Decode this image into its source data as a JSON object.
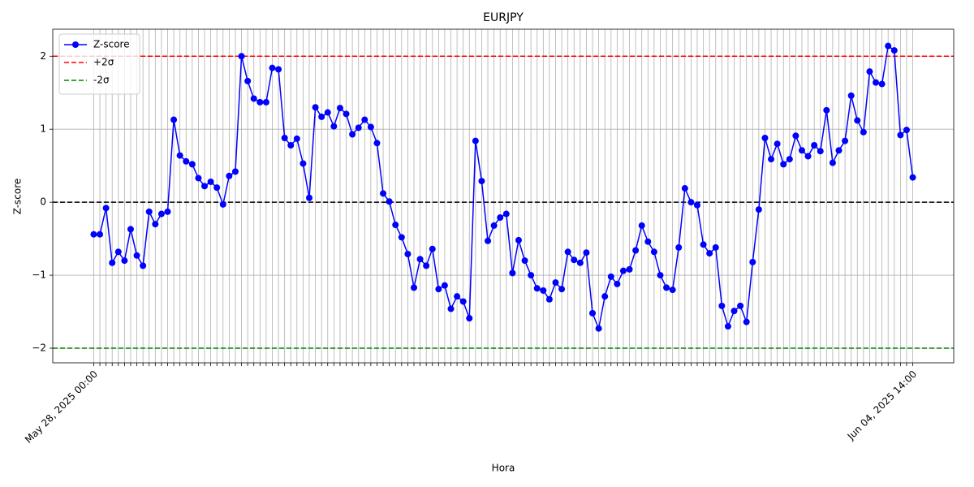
{
  "chart_data": {
    "type": "line",
    "title": "EURJPY",
    "x_label": "Hora",
    "y_label": "Z-score",
    "categories": [
      "May 28, 2025 00:00",
      null,
      null,
      null,
      null,
      null,
      null,
      null,
      null,
      null,
      null,
      null,
      null,
      null,
      null,
      null,
      null,
      null,
      null,
      null,
      null,
      null,
      null,
      null,
      null,
      null,
      null,
      null,
      null,
      null,
      null,
      null,
      null,
      null,
      null,
      null,
      null,
      null,
      null,
      null,
      null,
      null,
      null,
      null,
      null,
      null,
      null,
      null,
      null,
      null,
      null,
      null,
      null,
      null,
      null,
      null,
      null,
      null,
      null,
      null,
      null,
      null,
      null,
      null,
      null,
      null,
      null,
      null,
      null,
      null,
      null,
      null,
      null,
      null,
      null,
      null,
      null,
      null,
      null,
      null,
      null,
      null,
      null,
      null,
      null,
      null,
      null,
      null,
      null,
      null,
      null,
      null,
      null,
      null,
      null,
      null,
      null,
      null,
      null,
      null,
      null,
      null,
      null,
      null,
      null,
      null,
      null,
      null,
      null,
      null,
      null,
      null,
      null,
      null,
      null,
      null,
      null,
      null,
      null,
      null,
      null,
      null,
      null,
      null,
      null,
      null,
      null,
      null,
      null,
      null,
      null,
      null,
      null,
      "Jun 04, 2025 14:00"
    ],
    "series": [
      {
        "name": "Z-score",
        "color": "#0000ff",
        "marker": "o",
        "values": [
          -0.44,
          -0.44,
          -0.08,
          -0.83,
          -0.68,
          -0.8,
          -0.37,
          -0.73,
          -0.87,
          -0.13,
          -0.3,
          -0.16,
          -0.13,
          1.13,
          0.64,
          0.56,
          0.52,
          0.33,
          0.22,
          0.28,
          0.2,
          -0.03,
          0.36,
          0.42,
          2.0,
          1.66,
          1.42,
          1.37,
          1.37,
          1.84,
          1.82,
          0.88,
          0.78,
          0.87,
          0.53,
          0.06,
          1.3,
          1.17,
          1.23,
          1.04,
          1.29,
          1.21,
          0.93,
          1.02,
          1.13,
          1.03,
          0.81,
          0.12,
          0.01,
          -0.31,
          -0.48,
          -0.71,
          -1.17,
          -0.78,
          -0.87,
          -0.64,
          -1.19,
          -1.14,
          -1.46,
          -1.29,
          -1.36,
          -1.59,
          0.84,
          0.29,
          -0.53,
          -0.32,
          -0.21,
          -0.16,
          -0.97,
          -0.52,
          -0.8,
          -1.0,
          -1.18,
          -1.21,
          -1.33,
          -1.1,
          -1.19,
          -0.68,
          -0.79,
          -0.83,
          -0.69,
          -1.52,
          -1.73,
          -1.29,
          -1.02,
          -1.12,
          -0.94,
          -0.92,
          -0.66,
          -0.32,
          -0.54,
          -0.68,
          -1.0,
          -1.17,
          -1.2,
          -0.62,
          0.19,
          0.0,
          -0.04,
          -0.58,
          -0.7,
          -0.62,
          -1.42,
          -1.7,
          -1.49,
          -1.42,
          -1.64,
          -0.82,
          -0.1,
          0.88,
          0.59,
          0.8,
          0.52,
          0.59,
          0.91,
          0.71,
          0.63,
          0.78,
          0.7,
          1.26,
          0.54,
          0.71,
          0.84,
          1.46,
          1.12,
          0.96,
          1.79,
          1.64,
          1.62,
          2.14,
          2.08,
          0.92,
          0.99,
          0.34
        ]
      }
    ],
    "hlines": [
      {
        "name": "+2σ",
        "value": 2,
        "color": "#ff0000",
        "dash": true
      },
      {
        "name": "-2σ",
        "value": -2,
        "color": "#008000",
        "dash": true
      },
      {
        "value": 0,
        "color": "#000000",
        "dash": true
      }
    ],
    "ylim": [
      -2.2,
      2.37
    ],
    "yticks": [
      {
        "value": -2,
        "label": "−2"
      },
      {
        "value": -1,
        "label": "−1"
      },
      0,
      1,
      2
    ],
    "grid": true,
    "legend": "upper left"
  }
}
